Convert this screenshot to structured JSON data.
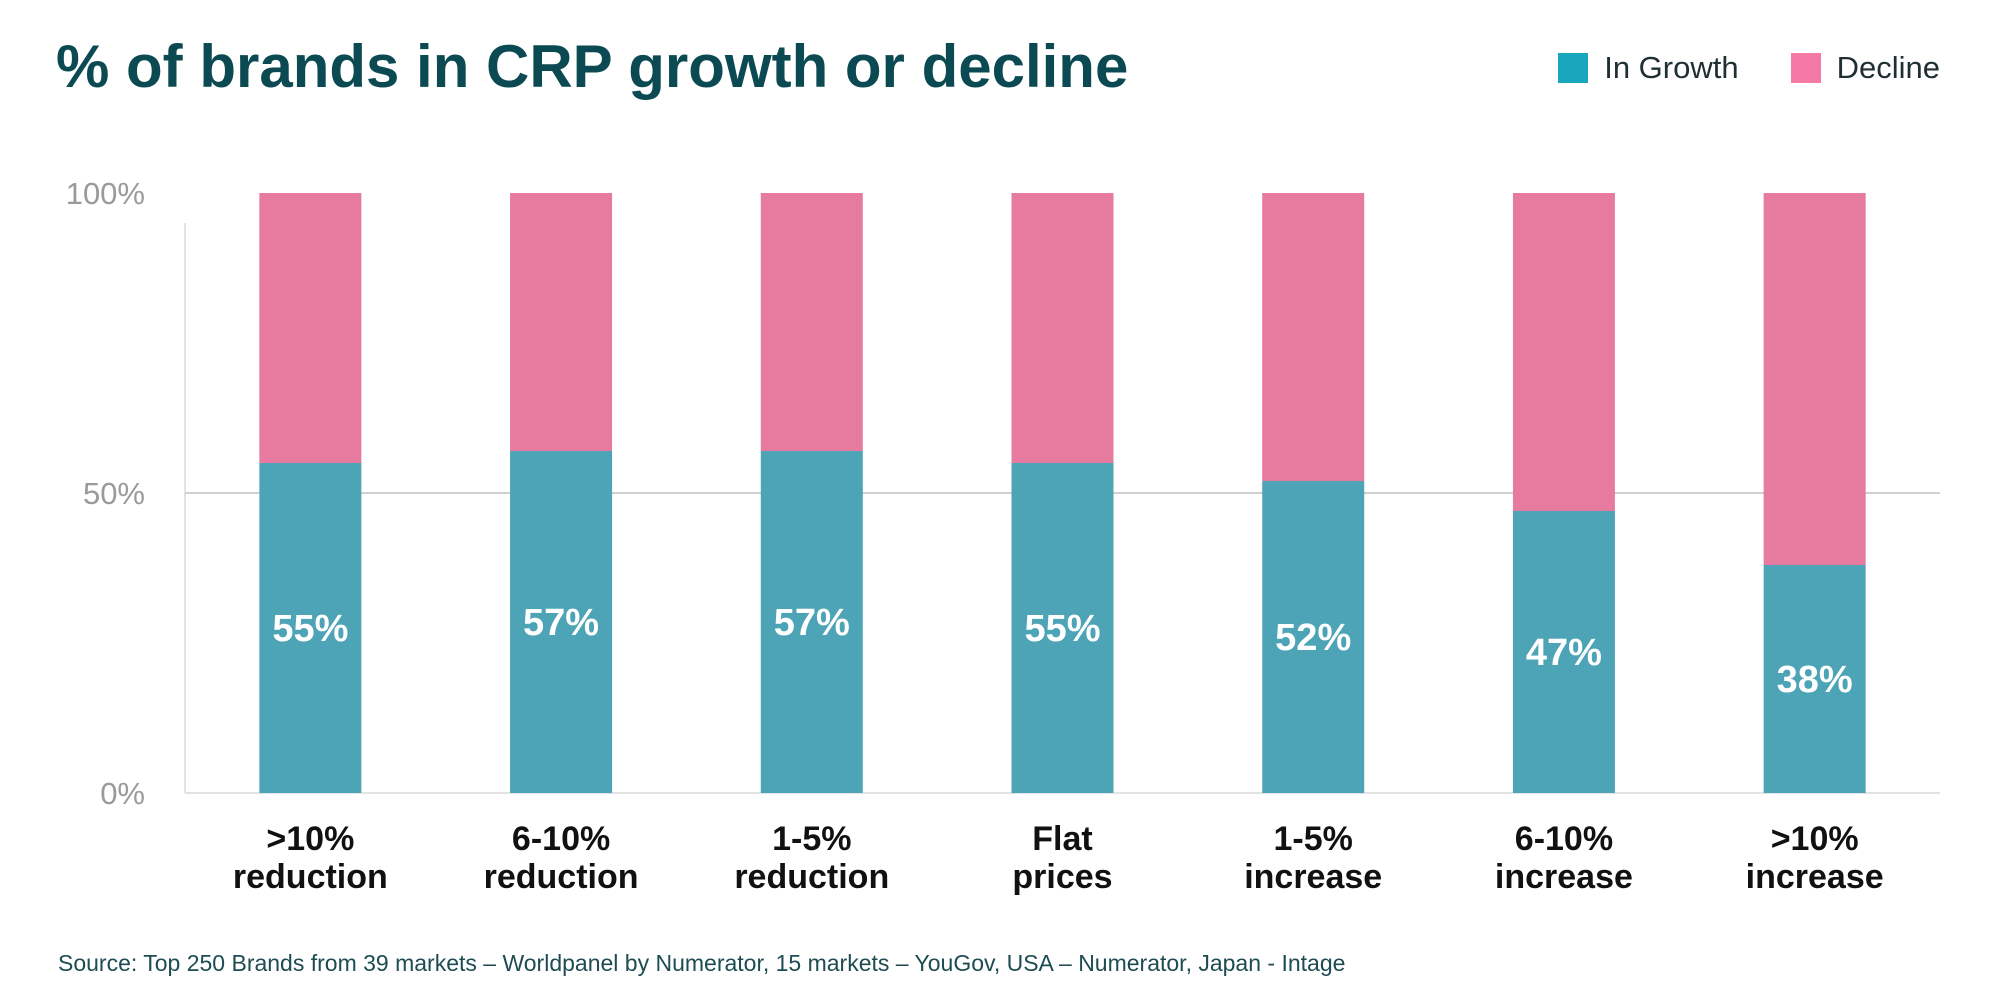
{
  "chart_data": {
    "type": "bar",
    "stacked": true,
    "title": "% of brands in CRP growth or decline",
    "categories": [
      ">10% reduction",
      "6-10% reduction",
      "1-5% reduction",
      "Flat prices",
      "1-5% increase",
      "6-10% increase",
      ">10% increase"
    ],
    "category_lines": [
      [
        ">10%",
        "reduction"
      ],
      [
        "6-10%",
        "reduction"
      ],
      [
        "1-5%",
        "reduction"
      ],
      [
        "Flat",
        "prices"
      ],
      [
        "1-5%",
        "increase"
      ],
      [
        "6-10%",
        "increase"
      ],
      [
        ">10%",
        "increase"
      ]
    ],
    "series": [
      {
        "name": "In Growth",
        "values": [
          55,
          57,
          57,
          55,
          52,
          47,
          38
        ],
        "color": "#4da4b6"
      },
      {
        "name": "Decline",
        "values": [
          45,
          43,
          43,
          45,
          48,
          53,
          62
        ],
        "color": "#e67a9f"
      }
    ],
    "data_labels": [
      "55%",
      "57%",
      "57%",
      "55%",
      "52%",
      "47%",
      "38%"
    ],
    "yticks": [
      "0%",
      "50%",
      "100%"
    ],
    "ylim": [
      0,
      100
    ],
    "grid": "horizontal at 50%",
    "legend_position": "top-right",
    "source": "Source: Top 250 Brands from 39 markets – Worldpanel by Numerator, 15 markets – YouGov, USA – Numerator, Japan - Intage"
  },
  "legend": [
    {
      "label": "In Growth",
      "color": "#1aa6bd"
    },
    {
      "label": "Decline",
      "color": "#f47aa5"
    }
  ]
}
